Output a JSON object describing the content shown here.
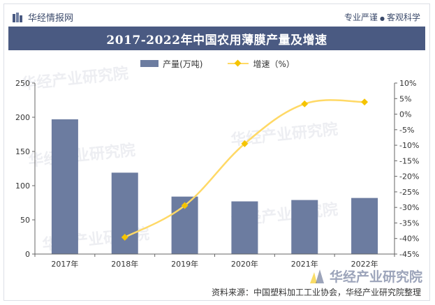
{
  "header": {
    "brand": "华经情报网",
    "slogan_left": "专业严谨",
    "slogan_sep": "●",
    "slogan_right": "客观科学"
  },
  "watermark": {
    "text": "华经产业研究院",
    "url": "www.huaon.com"
  },
  "source": "资料来源：中国塑料加工工业协会，华经产业研究院整理",
  "chart_data": {
    "type": "bar",
    "title": "2017-2022年中国农用薄膜产量及增速",
    "categories": [
      "2017年",
      "2018年",
      "2019年",
      "2020年",
      "2021年",
      "2022年"
    ],
    "series": [
      {
        "name": "产量(万吨)",
        "type": "bar",
        "axis": "left",
        "values": [
          197,
          119,
          84,
          77,
          79,
          82
        ]
      },
      {
        "name": "增速（%）",
        "type": "line",
        "axis": "right",
        "values": [
          null,
          -39.6,
          -29.4,
          -9.5,
          3.3,
          3.9
        ]
      }
    ],
    "y_left": {
      "min": 0,
      "max": 250,
      "step": 50
    },
    "y_right": {
      "min": -45,
      "max": 10,
      "step": 5
    },
    "colors": {
      "bar": "#6c7ca0",
      "line": "#ffd966",
      "marker": "#f5c400"
    },
    "legend_position": "top-center",
    "grid": false
  }
}
